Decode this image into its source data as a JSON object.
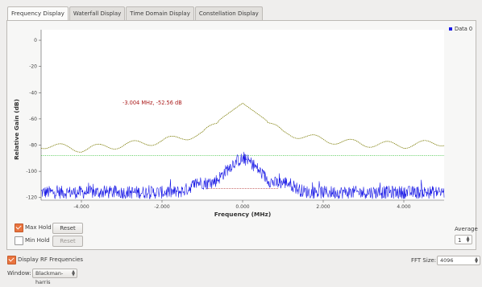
{
  "tabs": [
    {
      "label": "Frequency Display",
      "active": true
    },
    {
      "label": "Waterfall Display",
      "active": false
    },
    {
      "label": "Time Domain Display",
      "active": false
    },
    {
      "label": "Constellation Display",
      "active": false
    }
  ],
  "plot": {
    "ylabel": "Relative Gain (dB)",
    "xlabel": "Frequency (MHz)",
    "legend": "Data 0",
    "marker_readout": "-3.004 MHz, -52.56 dB",
    "colors": {
      "trace": "#1a1ae6",
      "max_hold": "#7a7a00",
      "threshold": "#22bb22",
      "marker_text": "#aa1a1a"
    },
    "y_ticks": [
      "0",
      "-20",
      "-40",
      "-60",
      "-80",
      "-100",
      "-120"
    ],
    "x_ticks": [
      "-4.000",
      "-2.000",
      "0.000",
      "2.000",
      "4.000"
    ]
  },
  "chart_data": {
    "type": "line",
    "ylabel": "Relative Gain (dB)",
    "xlabel": "Frequency (MHz)",
    "xlim": [
      -5,
      5
    ],
    "ylim": [
      -122,
      8
    ],
    "x_ticks": [
      -4,
      -2,
      0,
      2,
      4
    ],
    "y_ticks": [
      0,
      -20,
      -40,
      -60,
      -80,
      -100,
      -120
    ],
    "grid": false,
    "legend": "top-right",
    "threshold_db": -88,
    "series": [
      {
        "name": "Data 0",
        "trace": "noise",
        "noise_floor_db": -116,
        "peak_db": -91,
        "peak_center_mhz": 0
      },
      {
        "trace": "max_hold",
        "x": [
          -5,
          -4,
          -3,
          -2,
          -1.5,
          -1,
          -0.5,
          0,
          0.5,
          1,
          1.5,
          2,
          3,
          4,
          5
        ],
        "y": [
          -80,
          -83,
          -80,
          -77,
          -74,
          -72,
          -59,
          -48,
          -59,
          -71,
          -73,
          -76,
          -79,
          -80,
          -78
        ]
      }
    ]
  },
  "controls": {
    "max_hold_label": "Max Hold",
    "max_hold_checked": true,
    "min_hold_label": "Min Hold",
    "min_hold_checked": false,
    "reset_label": "Reset",
    "average_label": "Average",
    "average_value": "1"
  },
  "bottom": {
    "display_rf_label": "Display RF Frequencies",
    "display_rf_checked": true,
    "fft_size_label": "FFT Size:",
    "fft_size_value": "4096",
    "window_label": "Window:",
    "window_value": "Blackman-harris"
  }
}
